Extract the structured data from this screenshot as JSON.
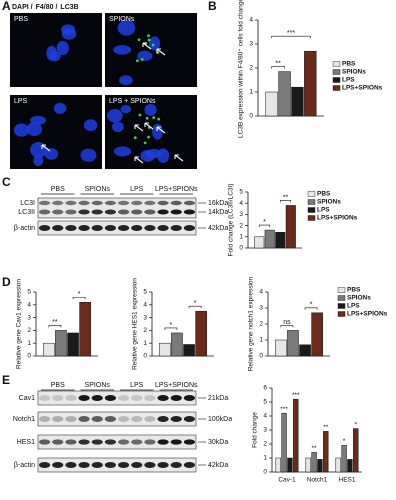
{
  "panel_labels": [
    "A",
    "B",
    "C",
    "D",
    "E"
  ],
  "panel_a": {
    "stains": [
      {
        "text": "DAPI /",
        "color": "#2f5fe0"
      },
      {
        "text": "F4/80 /",
        "color": "#2a9a2a"
      },
      {
        "text": "LC3B",
        "color": "#d82020"
      }
    ],
    "images": [
      "PBS",
      "SPIONs",
      "LPS",
      "LPS + SPIONs"
    ]
  },
  "blot_c": {
    "lanes": [
      "PBS",
      "SPIONs",
      "LPS",
      "LPS+SPIONs"
    ],
    "rows": [
      "LC3I",
      "LC3II",
      "β-actin"
    ],
    "sizes": [
      "16kDa",
      "14kDa",
      "42kDa"
    ]
  },
  "blot_e": {
    "lanes": [
      "PBS",
      "SPIONs",
      "LPS",
      "LPS+SPIONs"
    ],
    "rows": [
      "Cav1",
      "Notch1",
      "HES1",
      "β-actin"
    ],
    "sizes": [
      "21kDa",
      "100kDa",
      "30kDa",
      "42kDa"
    ]
  },
  "chart_data": [
    {
      "type": "bar",
      "ylabel": "LC3B expression within F4/80⁺ cells fold change",
      "categories": [
        null
      ],
      "series": [
        {
          "name": "PBS",
          "color": "#e6e6e6",
          "values": [
            1.0
          ]
        },
        {
          "name": "SPIONs",
          "color": "#7a7a7a",
          "values": [
            1.85
          ]
        },
        {
          "name": "LPS",
          "color": "#1a1a1a",
          "values": [
            1.2
          ]
        },
        {
          "name": "LPS+SPIONs",
          "color": "#6b2a1a",
          "values": [
            2.7
          ]
        }
      ],
      "ylim": [
        0,
        4
      ],
      "yticks": [
        0,
        1,
        2,
        3,
        4
      ],
      "annotations": [
        "**",
        "***"
      ]
    },
    {
      "type": "bar",
      "ylabel": "Fold change (LC3II/LC3I)",
      "categories": [
        null
      ],
      "series": [
        {
          "name": "PBS",
          "color": "#e6e6e6",
          "values": [
            1.0
          ]
        },
        {
          "name": "SPIONs",
          "color": "#7a7a7a",
          "values": [
            1.6
          ]
        },
        {
          "name": "LPS",
          "color": "#1a1a1a",
          "values": [
            1.4
          ]
        },
        {
          "name": "LPS+SPIONs",
          "color": "#6b2a1a",
          "values": [
            3.8
          ]
        }
      ],
      "ylim": [
        0,
        5
      ],
      "yticks": [
        0,
        1,
        2,
        3,
        4,
        5
      ],
      "annotations": [
        "*",
        "**"
      ]
    },
    {
      "type": "bar",
      "ylabel": "Relative gene Cav1 expression",
      "categories": [
        null
      ],
      "series": [
        {
          "color": "#e6e6e6",
          "values": [
            1.0
          ]
        },
        {
          "color": "#7a7a7a",
          "values": [
            2.0
          ]
        },
        {
          "color": "#1a1a1a",
          "values": [
            1.8
          ]
        },
        {
          "color": "#6b2a1a",
          "values": [
            4.2
          ]
        }
      ],
      "ylim": [
        0,
        5
      ],
      "yticks": [
        0,
        1,
        2,
        3,
        4,
        5
      ],
      "annotations": [
        "**",
        "*"
      ]
    },
    {
      "type": "bar",
      "ylabel": "Relative gene HES1 expression",
      "categories": [
        null
      ],
      "series": [
        {
          "color": "#e6e6e6",
          "values": [
            1.0
          ]
        },
        {
          "color": "#7a7a7a",
          "values": [
            1.8
          ]
        },
        {
          "color": "#1a1a1a",
          "values": [
            0.9
          ]
        },
        {
          "color": "#6b2a1a",
          "values": [
            3.5
          ]
        }
      ],
      "ylim": [
        0,
        5
      ],
      "yticks": [
        0,
        1,
        2,
        3,
        4,
        5
      ],
      "annotations": [
        "*",
        "*"
      ]
    },
    {
      "type": "bar",
      "ylabel": "Relative gene notch1 expression",
      "categories": [
        null
      ],
      "series": [
        {
          "name": "PBS",
          "color": "#e6e6e6",
          "values": [
            1.0
          ]
        },
        {
          "name": "SPIONs",
          "color": "#7a7a7a",
          "values": [
            1.6
          ]
        },
        {
          "name": "LPS",
          "color": "#1a1a1a",
          "values": [
            0.7
          ]
        },
        {
          "name": "LPS+SPIONs",
          "color": "#6b2a1a",
          "values": [
            2.7
          ]
        }
      ],
      "ylim": [
        0,
        4
      ],
      "yticks": [
        0,
        1,
        2,
        3,
        4
      ],
      "annotations": [
        "ns",
        "*"
      ]
    },
    {
      "type": "bar",
      "ylabel": "Fold change",
      "categories": [
        "Cav-1",
        "Notch1",
        "HES1"
      ],
      "series": [
        {
          "color": "#e6e6e6",
          "values": [
            1.0,
            1.0,
            1.0
          ]
        },
        {
          "color": "#7a7a7a",
          "values": [
            4.2,
            1.4,
            1.9
          ]
        },
        {
          "color": "#1a1a1a",
          "values": [
            1.0,
            0.9,
            0.9
          ]
        },
        {
          "color": "#6b2a1a",
          "values": [
            5.2,
            2.9,
            3.1
          ]
        }
      ],
      "ylim": [
        0,
        6
      ],
      "yticks": [
        0,
        1,
        2,
        3,
        4,
        5,
        6
      ],
      "annotations": [
        "***",
        "***",
        "**",
        "**",
        "*",
        "*"
      ]
    }
  ]
}
